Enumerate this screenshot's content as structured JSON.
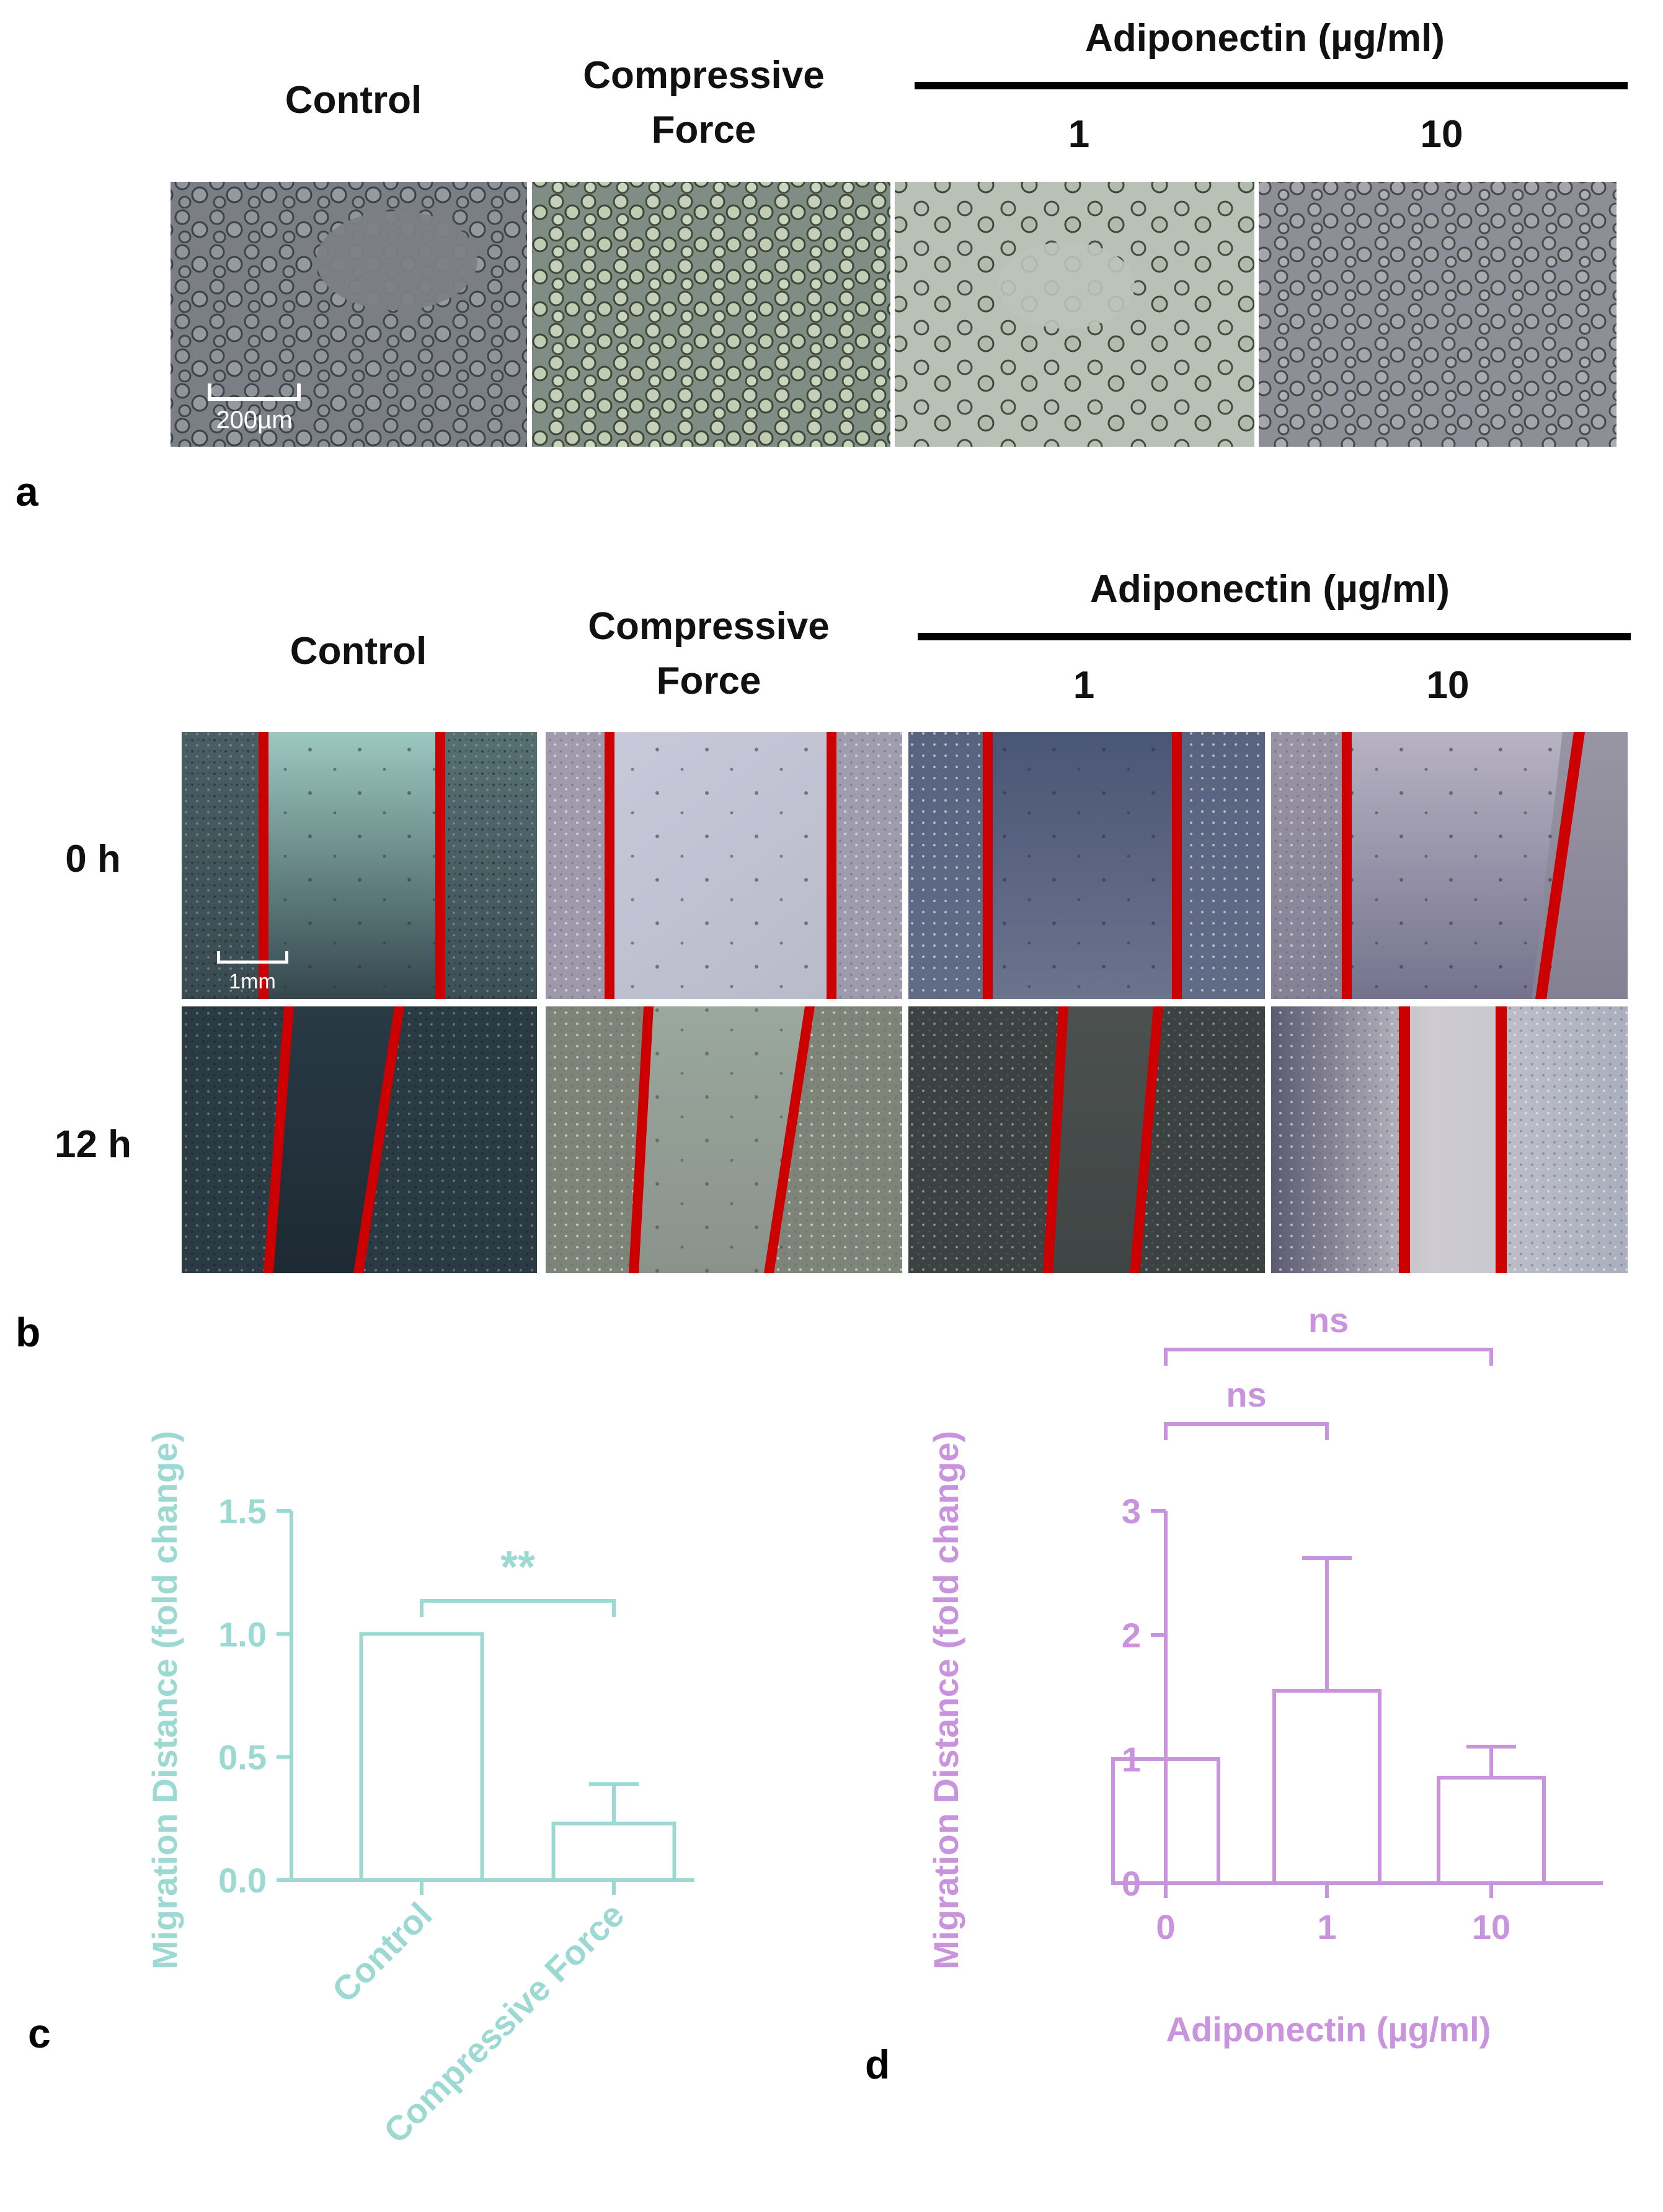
{
  "panel_a": {
    "label": "a",
    "headers": {
      "control": "Control",
      "compressive_line1": "Compressive",
      "compressive_line2": "Force",
      "group": "Adiponectin (µg/ml)",
      "dose1": "1",
      "dose10": "10"
    },
    "scale_bar": "200µm"
  },
  "panel_b": {
    "label": "b",
    "headers": {
      "control": "Control",
      "compressive_line1": "Compressive",
      "compressive_line2": "Force",
      "group": "Adiponectin (µg/ml)",
      "dose1": "1",
      "dose10": "10"
    },
    "rows": [
      "0 h",
      "12 h"
    ],
    "scale_bar": "1mm",
    "line_color": "#cc0000"
  },
  "colors": {
    "teal": "#9bd9d2",
    "purple": "#c994dd"
  },
  "chart_data": [
    {
      "panel": "c",
      "type": "bar",
      "categories": [
        "Control",
        "Compressive Force"
      ],
      "values": [
        1.0,
        0.23
      ],
      "error_upper": [
        0.0,
        0.39
      ],
      "ylabel": "Migration Distance (fold change)",
      "xlabel": "",
      "ylim": [
        0,
        1.5
      ],
      "yticks": [
        "0.0",
        "0.5",
        "1.0",
        "1.5"
      ],
      "significance": [
        {
          "from": 0,
          "to": 1,
          "label": "**"
        }
      ],
      "color": "#9bd9d2"
    },
    {
      "panel": "d",
      "type": "bar",
      "categories": [
        "0",
        "1",
        "10"
      ],
      "values": [
        1.0,
        1.55,
        0.85
      ],
      "error_upper": [
        1.0,
        2.62,
        1.1
      ],
      "ylabel": "Migration Distance (fold change)",
      "xlabel": "Adiponectin  (µg/ml)",
      "ylim": [
        0,
        3
      ],
      "yticks": [
        "0",
        "1",
        "2",
        "3"
      ],
      "significance": [
        {
          "from": 0,
          "to": 1,
          "label": "ns"
        },
        {
          "from": 0,
          "to": 2,
          "label": "ns"
        }
      ],
      "color": "#c994dd"
    }
  ]
}
